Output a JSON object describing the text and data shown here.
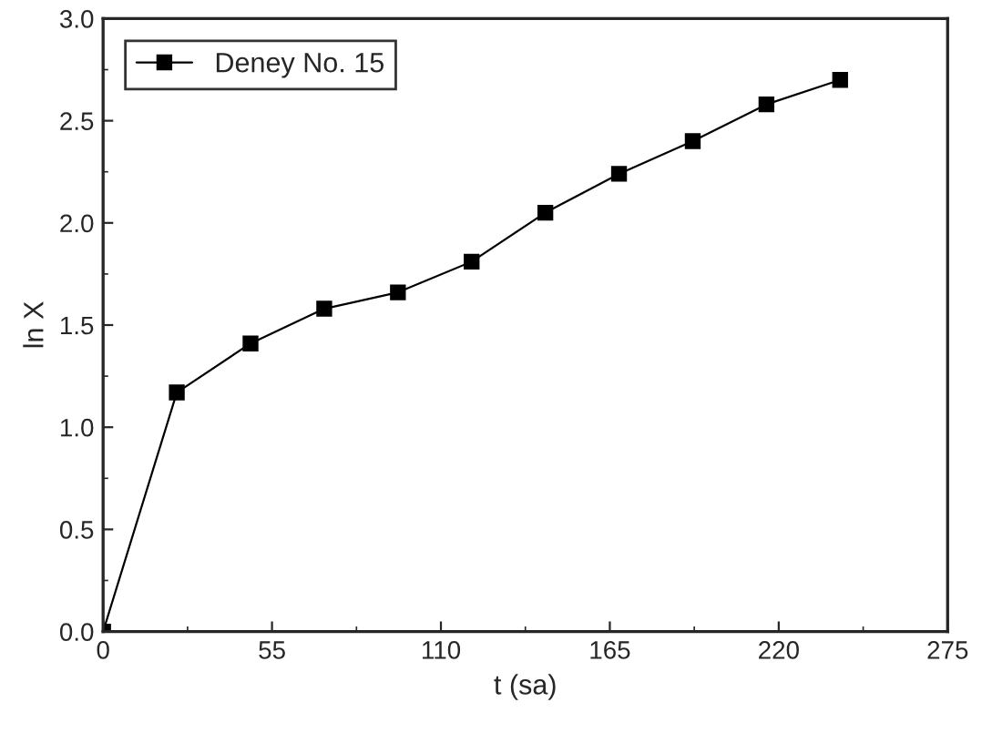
{
  "chart_data": {
    "type": "line",
    "xlabel": "t (sa)",
    "ylabel": "ln X",
    "x": [
      0,
      24,
      48,
      72,
      96,
      120,
      144,
      168,
      192,
      216,
      240
    ],
    "series": [
      {
        "name": "Deney No. 15",
        "color": "#000000",
        "values": [
          0,
          1.17,
          1.41,
          1.58,
          1.66,
          1.81,
          2.05,
          2.24,
          2.4,
          2.58,
          2.7
        ]
      }
    ],
    "xlim": [
      0,
      275
    ],
    "xticks": [
      0,
      55,
      110,
      165,
      220,
      275
    ],
    "ylim": [
      0,
      3.0
    ],
    "yticks": [
      {
        "value": 0,
        "label": "0.0"
      },
      {
        "value": 0.5,
        "label": "0.5"
      },
      {
        "value": 1.0,
        "label": "1.0"
      },
      {
        "value": 1.5,
        "label": "1.5"
      },
      {
        "value": 2.0,
        "label": "2.0"
      },
      {
        "value": 2.5,
        "label": "2.5"
      },
      {
        "value": 3.0,
        "label": "3.0"
      }
    ],
    "marker": "square",
    "line_style": "solid",
    "legend": "top left",
    "grid": false
  }
}
